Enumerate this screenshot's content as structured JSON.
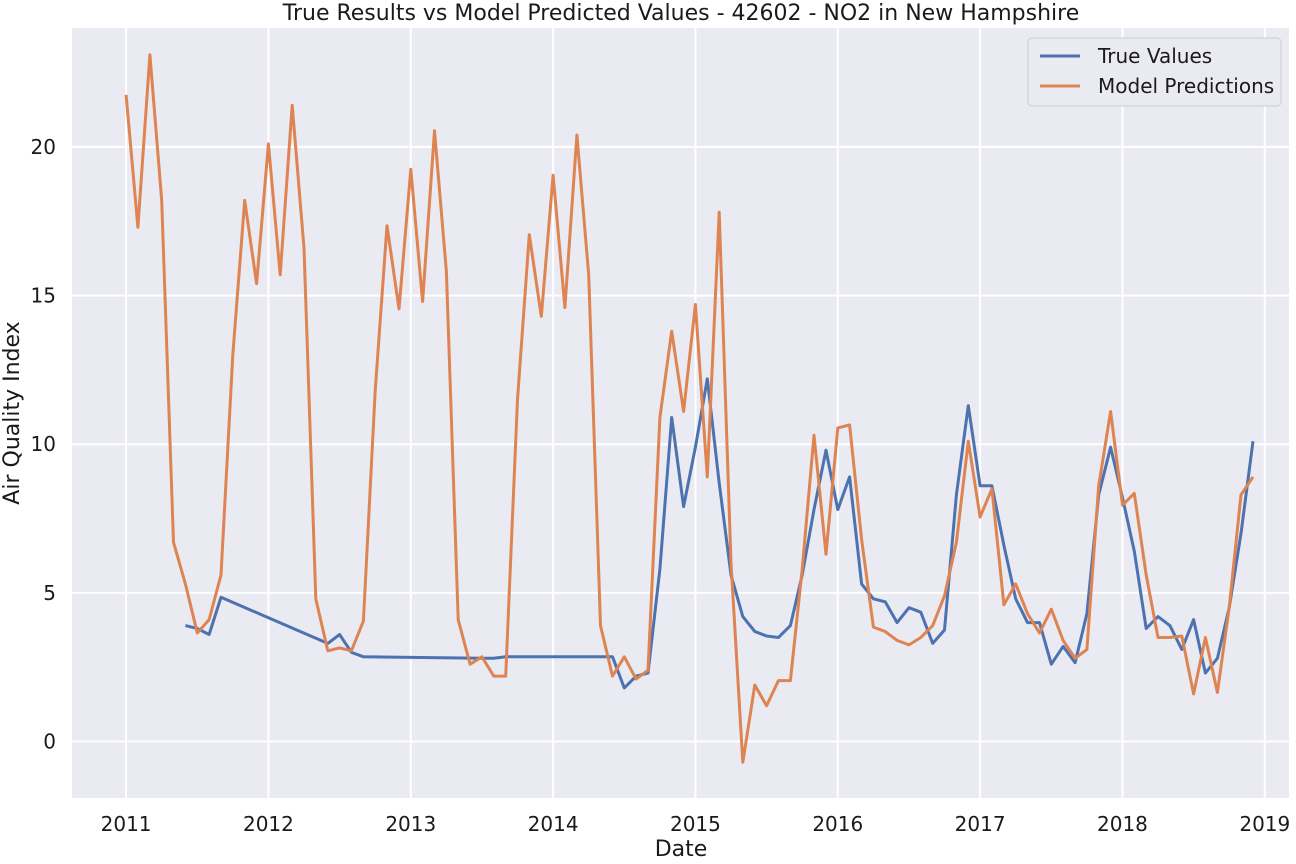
{
  "chart_data": {
    "type": "line",
    "title": "True Results vs Model Predicted Values - 42602 - NO2 in New Hampshire",
    "xlabel": "Date",
    "ylabel": "Air Quality Index",
    "xlim": [
      2010.62,
      2019.17
    ],
    "ylim": [
      -1.9,
      24.0
    ],
    "x_ticks": [
      2011,
      2012,
      2013,
      2014,
      2015,
      2016,
      2017,
      2018,
      2019
    ],
    "x_tick_labels": [
      "2011",
      "2012",
      "2013",
      "2014",
      "2015",
      "2016",
      "2017",
      "2018",
      "2019"
    ],
    "y_ticks": [
      0,
      5,
      10,
      15,
      20
    ],
    "y_tick_labels": [
      "0",
      "5",
      "10",
      "15",
      "20"
    ],
    "grid": true,
    "legend_position": "top-right",
    "colors": {
      "background": "#eaeaf2",
      "grid": "#ffffff"
    },
    "series": [
      {
        "name": "True Values",
        "color": "#4c72b0",
        "points": [
          [
            2011.417,
            3.9
          ],
          [
            2011.5,
            3.8
          ],
          [
            2011.583,
            3.6
          ],
          [
            2011.667,
            4.85
          ],
          [
            2012.417,
            3.3
          ],
          [
            2012.5,
            3.6
          ],
          [
            2012.583,
            3.0
          ],
          [
            2012.667,
            2.85
          ],
          [
            2013.5,
            2.8
          ],
          [
            2013.583,
            2.8
          ],
          [
            2013.667,
            2.85
          ],
          [
            2014.417,
            2.85
          ],
          [
            2014.5,
            1.8
          ],
          [
            2014.583,
            2.2
          ],
          [
            2014.667,
            2.3
          ],
          [
            2014.75,
            5.8
          ],
          [
            2014.833,
            10.9
          ],
          [
            2014.917,
            7.9
          ],
          [
            2015.0,
            9.9
          ],
          [
            2015.083,
            12.2
          ],
          [
            2015.167,
            8.7
          ],
          [
            2015.25,
            5.6
          ],
          [
            2015.333,
            4.2
          ],
          [
            2015.417,
            3.7
          ],
          [
            2015.5,
            3.55
          ],
          [
            2015.583,
            3.5
          ],
          [
            2015.667,
            3.9
          ],
          [
            2015.75,
            5.6
          ],
          [
            2015.833,
            7.8
          ],
          [
            2015.917,
            9.8
          ],
          [
            2016.0,
            7.8
          ],
          [
            2016.083,
            8.9
          ],
          [
            2016.167,
            5.3
          ],
          [
            2016.25,
            4.8
          ],
          [
            2016.333,
            4.7
          ],
          [
            2016.417,
            4.0
          ],
          [
            2016.5,
            4.5
          ],
          [
            2016.583,
            4.35
          ],
          [
            2016.667,
            3.3
          ],
          [
            2016.75,
            3.75
          ],
          [
            2016.833,
            8.3
          ],
          [
            2016.917,
            11.3
          ],
          [
            2017.0,
            8.6
          ],
          [
            2017.083,
            8.6
          ],
          [
            2017.167,
            6.6
          ],
          [
            2017.25,
            4.8
          ],
          [
            2017.333,
            4.0
          ],
          [
            2017.417,
            4.0
          ],
          [
            2017.5,
            2.6
          ],
          [
            2017.583,
            3.2
          ],
          [
            2017.667,
            2.65
          ],
          [
            2017.75,
            4.3
          ],
          [
            2017.833,
            8.3
          ],
          [
            2017.917,
            9.9
          ],
          [
            2018.0,
            8.2
          ],
          [
            2018.083,
            6.4
          ],
          [
            2018.167,
            3.8
          ],
          [
            2018.25,
            4.2
          ],
          [
            2018.333,
            3.9
          ],
          [
            2018.417,
            3.1
          ],
          [
            2018.5,
            4.1
          ],
          [
            2018.583,
            2.3
          ],
          [
            2018.667,
            2.8
          ],
          [
            2018.75,
            4.5
          ],
          [
            2018.833,
            7.0
          ],
          [
            2018.917,
            10.1
          ]
        ]
      },
      {
        "name": "Model Predictions",
        "color": "#dd8452",
        "points": [
          [
            2011.0,
            21.75
          ],
          [
            2011.083,
            17.3
          ],
          [
            2011.167,
            23.1
          ],
          [
            2011.25,
            18.2
          ],
          [
            2011.333,
            6.7
          ],
          [
            2011.417,
            5.3
          ],
          [
            2011.5,
            3.65
          ],
          [
            2011.583,
            4.1
          ],
          [
            2011.667,
            5.6
          ],
          [
            2011.75,
            13.0
          ],
          [
            2011.833,
            18.2
          ],
          [
            2011.917,
            15.4
          ],
          [
            2012.0,
            20.1
          ],
          [
            2012.083,
            15.7
          ],
          [
            2012.167,
            21.4
          ],
          [
            2012.25,
            16.6
          ],
          [
            2012.333,
            4.8
          ],
          [
            2012.417,
            3.05
          ],
          [
            2012.5,
            3.15
          ],
          [
            2012.583,
            3.05
          ],
          [
            2012.667,
            4.05
          ],
          [
            2012.75,
            11.8
          ],
          [
            2012.833,
            17.35
          ],
          [
            2012.917,
            14.55
          ],
          [
            2013.0,
            19.25
          ],
          [
            2013.083,
            14.8
          ],
          [
            2013.167,
            20.55
          ],
          [
            2013.25,
            15.8
          ],
          [
            2013.333,
            4.1
          ],
          [
            2013.417,
            2.6
          ],
          [
            2013.5,
            2.85
          ],
          [
            2013.583,
            2.2
          ],
          [
            2013.667,
            2.2
          ],
          [
            2013.75,
            11.5
          ],
          [
            2013.833,
            17.05
          ],
          [
            2013.917,
            14.3
          ],
          [
            2014.0,
            19.05
          ],
          [
            2014.083,
            14.6
          ],
          [
            2014.167,
            20.4
          ],
          [
            2014.25,
            15.7
          ],
          [
            2014.333,
            3.9
          ],
          [
            2014.417,
            2.2
          ],
          [
            2014.5,
            2.85
          ],
          [
            2014.583,
            2.1
          ],
          [
            2014.667,
            2.4
          ],
          [
            2014.75,
            10.9
          ],
          [
            2014.833,
            13.8
          ],
          [
            2014.917,
            11.1
          ],
          [
            2015.0,
            14.7
          ],
          [
            2015.083,
            8.9
          ],
          [
            2015.167,
            17.8
          ],
          [
            2015.25,
            6.0
          ],
          [
            2015.333,
            -0.7
          ],
          [
            2015.417,
            1.9
          ],
          [
            2015.5,
            1.2
          ],
          [
            2015.583,
            2.05
          ],
          [
            2015.667,
            2.05
          ],
          [
            2015.75,
            5.8
          ],
          [
            2015.833,
            10.3
          ],
          [
            2015.917,
            6.3
          ],
          [
            2016.0,
            10.55
          ],
          [
            2016.083,
            10.65
          ],
          [
            2016.167,
            6.8
          ],
          [
            2016.25,
            3.85
          ],
          [
            2016.333,
            3.7
          ],
          [
            2016.417,
            3.4
          ],
          [
            2016.5,
            3.25
          ],
          [
            2016.583,
            3.5
          ],
          [
            2016.667,
            3.9
          ],
          [
            2016.75,
            4.9
          ],
          [
            2016.833,
            6.7
          ],
          [
            2016.917,
            10.1
          ],
          [
            2017.0,
            7.55
          ],
          [
            2017.083,
            8.5
          ],
          [
            2017.167,
            4.6
          ],
          [
            2017.25,
            5.3
          ],
          [
            2017.333,
            4.3
          ],
          [
            2017.417,
            3.65
          ],
          [
            2017.5,
            4.45
          ],
          [
            2017.583,
            3.4
          ],
          [
            2017.667,
            2.8
          ],
          [
            2017.75,
            3.1
          ],
          [
            2017.833,
            8.6
          ],
          [
            2017.917,
            11.1
          ],
          [
            2018.0,
            7.95
          ],
          [
            2018.083,
            8.35
          ],
          [
            2018.167,
            5.6
          ],
          [
            2018.25,
            3.5
          ],
          [
            2018.333,
            3.5
          ],
          [
            2018.417,
            3.55
          ],
          [
            2018.5,
            1.6
          ],
          [
            2018.583,
            3.5
          ],
          [
            2018.667,
            1.65
          ],
          [
            2018.75,
            4.5
          ],
          [
            2018.833,
            8.3
          ],
          [
            2018.917,
            8.9
          ]
        ]
      }
    ]
  }
}
